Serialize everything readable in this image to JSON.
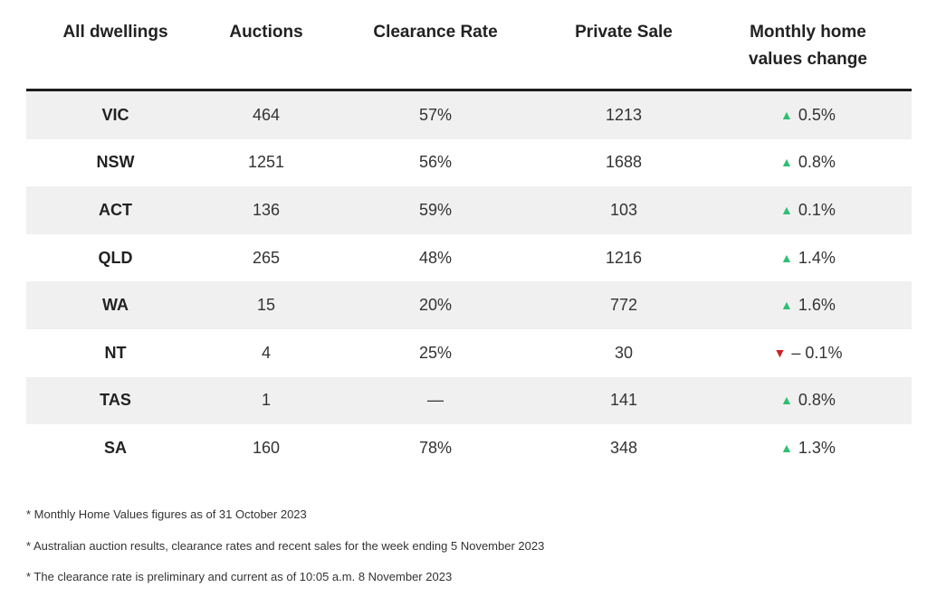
{
  "headers": {
    "col1": "All dwellings",
    "col2": "Auctions",
    "col3": "Clearance Rate",
    "col4": "Private Sale",
    "col5_line1": "Monthly home",
    "col5_line2": "values change"
  },
  "colors": {
    "up": "#2fbf71",
    "down": "#cc2222"
  },
  "rows": [
    {
      "state": "VIC",
      "auctions": "464",
      "clearance": "57%",
      "private": "1213",
      "dir": "up",
      "change": "0.5%"
    },
    {
      "state": "NSW",
      "auctions": "1251",
      "clearance": "56%",
      "private": "1688",
      "dir": "up",
      "change": "0.8%"
    },
    {
      "state": "ACT",
      "auctions": "136",
      "clearance": "59%",
      "private": "103",
      "dir": "up",
      "change": "0.1%"
    },
    {
      "state": "QLD",
      "auctions": "265",
      "clearance": "48%",
      "private": "1216",
      "dir": "up",
      "change": "1.4%"
    },
    {
      "state": "WA",
      "auctions": "15",
      "clearance": "20%",
      "private": "772",
      "dir": "up",
      "change": "1.6%"
    },
    {
      "state": "NT",
      "auctions": "4",
      "clearance": "25%",
      "private": "30",
      "dir": "down",
      "change": "– 0.1%"
    },
    {
      "state": "TAS",
      "auctions": "1",
      "clearance": "—",
      "private": "141",
      "dir": "up",
      "change": "0.8%"
    },
    {
      "state": "SA",
      "auctions": "160",
      "clearance": "78%",
      "private": "348",
      "dir": "up",
      "change": "1.3%"
    }
  ],
  "notes": [
    "* Monthly Home Values figures as of 31 October 2023",
    "* Australian auction results, clearance rates and recent sales for the week ending 5 November 2023",
    "* The clearance rate is preliminary and current as of 10:05 a.m. 8 November 2023"
  ]
}
